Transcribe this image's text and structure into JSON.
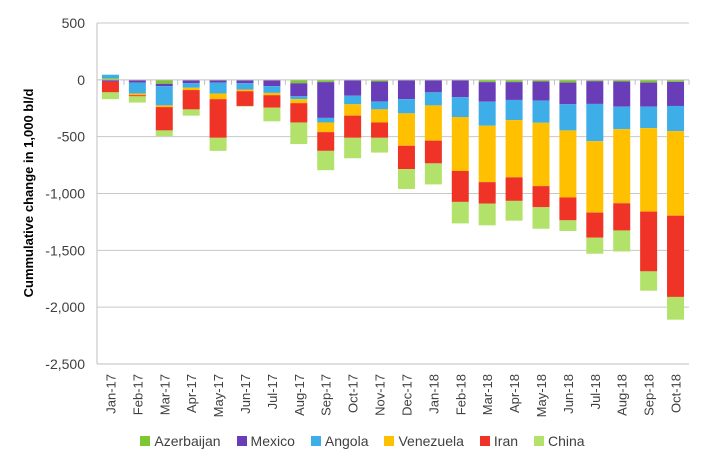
{
  "chart_data": {
    "type": "bar",
    "stacked": true,
    "title": "",
    "xlabel": "",
    "ylabel": "Cummulative change in 1,000 bl/d",
    "ylim": [
      -2500,
      500
    ],
    "yticks": [
      500,
      0,
      -500,
      -1000,
      -1500,
      -2000,
      -2500
    ],
    "ytick_labels": [
      "500",
      "0",
      "-500",
      "-1,000",
      "-1,500",
      "-2,000",
      "-2,500"
    ],
    "grid": true,
    "legend_position": "bottom",
    "categories": [
      "Jan-17",
      "Feb-17",
      "Mar-17",
      "Apr-17",
      "May-17",
      "Jun-17",
      "Jul-17",
      "Aug-17",
      "Sep-17",
      "Oct-17",
      "Nov-17",
      "Dec-17",
      "Jan-18",
      "Feb-18",
      "Mar-18",
      "Apr-18",
      "May-18",
      "Jun-18",
      "Jul-18",
      "Aug-18",
      "Sep-18",
      "Oct-18"
    ],
    "series": [
      {
        "name": "Azerbaijan",
        "color": "#7dc832",
        "values": [
          15,
          -5,
          -35,
          -5,
          -5,
          -5,
          -5,
          -30,
          -20,
          -5,
          -15,
          -5,
          -5,
          -5,
          -20,
          -20,
          -15,
          -24,
          -12,
          -15,
          -24,
          -18
        ]
      },
      {
        "name": "Mexico",
        "color": "#6a3db8",
        "values": [
          -15,
          -20,
          -20,
          -25,
          -20,
          -25,
          -50,
          -115,
          -315,
          -135,
          -175,
          -165,
          -105,
          -148,
          -172,
          -157,
          -168,
          -191,
          -200,
          -221,
          -212,
          -212
        ]
      },
      {
        "name": "Angola",
        "color": "#3eaee8",
        "values": [
          30,
          -95,
          -170,
          -40,
          -95,
          -55,
          -60,
          -25,
          -40,
          -75,
          -70,
          -125,
          -115,
          -174,
          -212,
          -177,
          -195,
          -230,
          -328,
          -198,
          -189,
          -221
        ]
      },
      {
        "name": "Venezuela",
        "color": "#ffc000",
        "values": [
          0,
          -15,
          -15,
          -20,
          -50,
          -15,
          -20,
          -35,
          -85,
          -100,
          -115,
          -285,
          -310,
          -475,
          -496,
          -504,
          -557,
          -590,
          -628,
          -652,
          -734,
          -744
        ]
      },
      {
        "name": "Iran",
        "color": "#ef3427",
        "values": [
          -95,
          -10,
          -205,
          -170,
          -340,
          -130,
          -110,
          -170,
          -165,
          -195,
          -135,
          -205,
          -200,
          -272,
          -188,
          -207,
          -186,
          -201,
          -221,
          -239,
          -526,
          -715
        ]
      },
      {
        "name": "China",
        "color": "#b3e26a",
        "values": [
          -60,
          -55,
          -50,
          -55,
          -115,
          -5,
          -120,
          -190,
          -170,
          -180,
          -130,
          -175,
          -185,
          -189,
          -192,
          -174,
          -189,
          -94,
          -141,
          -185,
          -170,
          -200
        ]
      }
    ]
  }
}
